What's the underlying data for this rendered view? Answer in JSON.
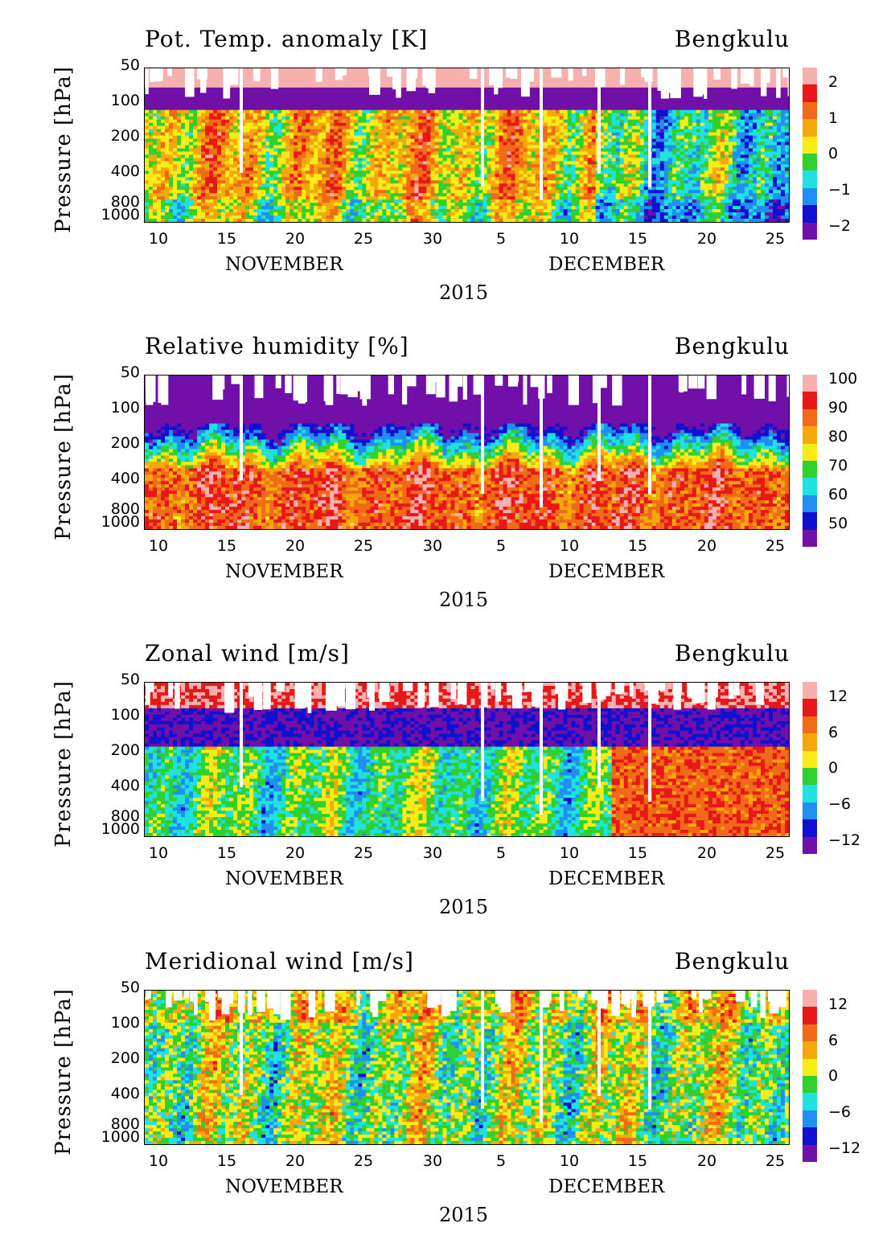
{
  "chart_data": [
    {
      "type": "heatmap",
      "title": "Pot. Temp. anomaly [K]",
      "station": "Bengkulu",
      "ylabel": "Pressure [hPa]",
      "yticks": [
        "50",
        "100",
        "200",
        "400",
        "800",
        "1000"
      ],
      "xticks": [
        "10",
        "15",
        "20",
        "25",
        "30",
        "5",
        "10",
        "15",
        "20",
        "25"
      ],
      "months": [
        "NOVEMBER",
        "DECEMBER"
      ],
      "year": "2015",
      "colorbar_labels": [
        "2",
        "1",
        "0",
        "−1",
        "−2"
      ],
      "colors": [
        "#f6b0b0",
        "#e81818",
        "#f06a18",
        "#f5a80c",
        "#f8ec18",
        "#30d030",
        "#20e0e0",
        "#2090f0",
        "#1010d0",
        "#7010a8"
      ],
      "pattern": "ptemp"
    },
    {
      "type": "heatmap",
      "title": "Relative humidity [%]",
      "station": "Bengkulu",
      "ylabel": "Pressure [hPa]",
      "yticks": [
        "50",
        "100",
        "200",
        "400",
        "800",
        "1000"
      ],
      "xticks": [
        "10",
        "15",
        "20",
        "25",
        "30",
        "5",
        "10",
        "15",
        "20",
        "25"
      ],
      "months": [
        "NOVEMBER",
        "DECEMBER"
      ],
      "year": "2015",
      "colorbar_labels": [
        "100",
        "90",
        "80",
        "70",
        "60",
        "50"
      ],
      "colors": [
        "#f6b0b0",
        "#e81818",
        "#f06a18",
        "#f5a80c",
        "#f8ec18",
        "#30d030",
        "#20e0e0",
        "#2090f0",
        "#1010d0",
        "#7010a8"
      ],
      "pattern": "rh"
    },
    {
      "type": "heatmap",
      "title": "Zonal wind [m/s]",
      "station": "Bengkulu",
      "ylabel": "Pressure [hPa]",
      "yticks": [
        "50",
        "100",
        "200",
        "400",
        "800",
        "1000"
      ],
      "xticks": [
        "10",
        "15",
        "20",
        "25",
        "30",
        "5",
        "10",
        "15",
        "20",
        "25"
      ],
      "months": [
        "NOVEMBER",
        "DECEMBER"
      ],
      "year": "2015",
      "colorbar_labels": [
        "12",
        "6",
        "0",
        "−6",
        "−12"
      ],
      "colors": [
        "#f6b0b0",
        "#e81818",
        "#f06a18",
        "#f5a80c",
        "#f8ec18",
        "#30d030",
        "#20e0e0",
        "#2090f0",
        "#1010d0",
        "#7010a8"
      ],
      "pattern": "uwind"
    },
    {
      "type": "heatmap",
      "title": "Meridional wind [m/s]",
      "station": "Bengkulu",
      "ylabel": "Pressure [hPa]",
      "yticks": [
        "50",
        "100",
        "200",
        "400",
        "800",
        "1000"
      ],
      "xticks": [
        "10",
        "15",
        "20",
        "25",
        "30",
        "5",
        "10",
        "15",
        "20",
        "25"
      ],
      "months": [
        "NOVEMBER",
        "DECEMBER"
      ],
      "year": "2015",
      "colorbar_labels": [
        "12",
        "6",
        "0",
        "−6",
        "−12"
      ],
      "colors": [
        "#f6b0b0",
        "#e81818",
        "#f06a18",
        "#f5a80c",
        "#f8ec18",
        "#30d030",
        "#20e0e0",
        "#2090f0",
        "#1010d0",
        "#7010a8"
      ],
      "pattern": "vwind"
    }
  ]
}
